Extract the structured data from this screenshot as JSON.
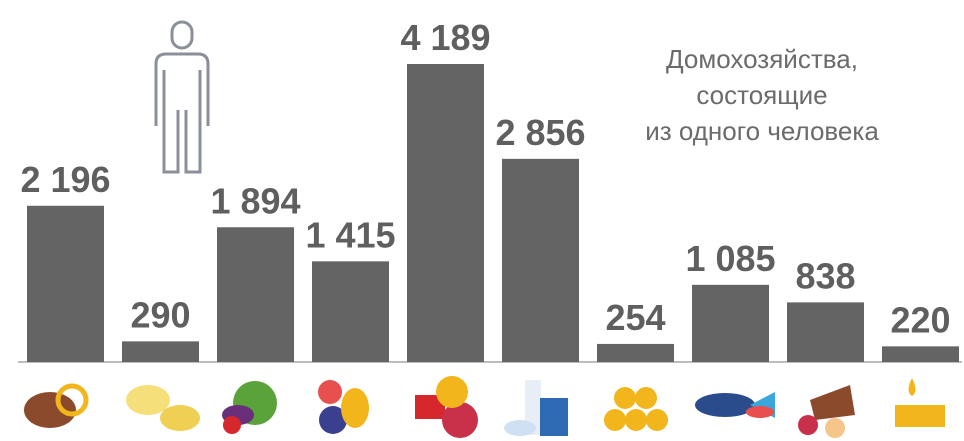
{
  "chart_data": {
    "type": "bar",
    "title": [
      "Домохозяйства,",
      "состоящие",
      "из одного человека"
    ],
    "categories": [
      null,
      null,
      null,
      null,
      null,
      null,
      null,
      null,
      null,
      null
    ],
    "values": [
      2196,
      290,
      1894,
      1415,
      4189,
      2856,
      254,
      1085,
      838,
      220
    ],
    "value_labels": [
      "2 196",
      "290",
      "1 894",
      "1 415",
      "4 189",
      "2 856",
      "254",
      "1 085",
      "838",
      "220"
    ],
    "color": "#646464"
  }
}
